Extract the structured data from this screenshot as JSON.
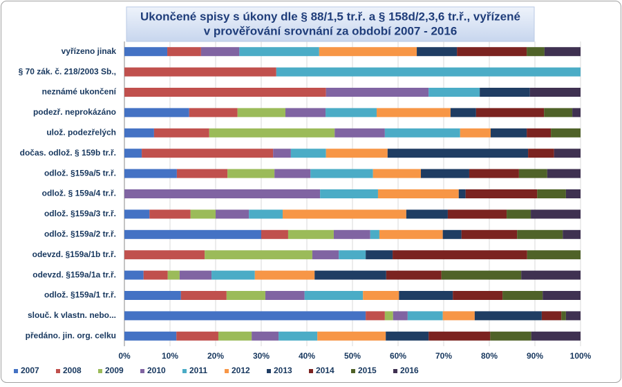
{
  "chart_data": {
    "type": "bar",
    "orientation": "horizontal",
    "stacked": true,
    "title": [
      "Ukončené spisy s úkony dle § 88/1,5 tr.ř. a § 158d/2,3,6 tr.ř., vyřízené",
      "v prověřování srovnání za období 2007  - 2016"
    ],
    "categories": [
      "vyřízeno jinak",
      "§ 70 zák. č. 218/2003 Sb.,",
      "neznámé ukončení",
      "podezř. neprokázáno",
      "ulož. podezřelých",
      "dočas. odlož. § 159b tr.ř.",
      "odlož. §159a/5 tr.ř.",
      "odlož. § 159a/4 tr.ř.",
      "odlož. §159a/3 tr.ř.",
      "odlož. §159a/2 tr.ř.",
      "odevzd. §159a/1b tr.ř.",
      "odevzd. §159a/1a tr.ř.",
      "odlož. §159a/1 tr.ř.",
      "slouč. k vlastn. nebo...",
      "předáno. jin. org. celku"
    ],
    "series": [
      {
        "name": "2007",
        "color": "#4472c4",
        "values": [
          9.4,
          0,
          0,
          14.2,
          6.5,
          3.8,
          11.5,
          0,
          5.5,
          30.0,
          0,
          4.2,
          12.4,
          52.9,
          11.4
        ]
      },
      {
        "name": "2008",
        "color": "#c0504d",
        "values": [
          7.4,
          33.3,
          44.2,
          10.6,
          12.1,
          28.8,
          11.1,
          0,
          9.0,
          5.9,
          17.6,
          5.3,
          10.0,
          4.2,
          9.2
        ]
      },
      {
        "name": "2009",
        "color": "#9bbb59",
        "values": [
          0,
          0,
          0,
          10.5,
          27.5,
          0,
          10.3,
          0,
          5.5,
          10.0,
          23.6,
          2.6,
          8.5,
          1.8,
          7.3
        ]
      },
      {
        "name": "2010",
        "color": "#8064a2",
        "values": [
          8.4,
          0,
          22.5,
          8.8,
          11.0,
          3.9,
          7.9,
          42.9,
          7.3,
          8.0,
          5.8,
          7.0,
          8.6,
          3.2,
          5.9
        ]
      },
      {
        "name": "2011",
        "color": "#4bacc6",
        "values": [
          17.5,
          66.7,
          11.2,
          11.2,
          16.5,
          7.7,
          13.7,
          12.7,
          7.4,
          2.0,
          5.9,
          9.5,
          12.8,
          7.7,
          8.5
        ]
      },
      {
        "name": "2012",
        "color": "#f79646",
        "values": [
          21.4,
          0,
          0,
          16.2,
          6.7,
          13.5,
          10.5,
          17.7,
          27.1,
          13.9,
          0,
          13.1,
          7.9,
          7.0,
          15.0
        ]
      },
      {
        "name": "2013",
        "color": "#1f3d63",
        "values": [
          8.8,
          0,
          11.0,
          5.6,
          7.9,
          30.8,
          10.6,
          1.5,
          9.1,
          4.1,
          5.9,
          15.7,
          11.8,
          14.7,
          9.4
        ]
      },
      {
        "name": "2014",
        "color": "#7b2320",
        "values": [
          15.3,
          0,
          0,
          14.9,
          5.3,
          5.7,
          10.9,
          15.7,
          12.9,
          12.2,
          29.5,
          12.1,
          10.9,
          4.3,
          13.5
        ]
      },
      {
        "name": "2015",
        "color": "#4f6228",
        "values": [
          3.9,
          0,
          0,
          6.2,
          6.5,
          0,
          6.2,
          6.3,
          5.3,
          10.0,
          11.7,
          17.5,
          8.8,
          1.0,
          9.0
        ]
      },
      {
        "name": "2016",
        "color": "#3f3151",
        "values": [
          7.9,
          0,
          11.1,
          1.8,
          0,
          5.8,
          7.3,
          3.2,
          10.9,
          3.9,
          0,
          13.0,
          8.3,
          3.2,
          10.8
        ]
      }
    ],
    "xlim": [
      0,
      100
    ],
    "xticks": [
      {
        "value": 0,
        "label": "0%"
      },
      {
        "value": 10,
        "label": "10%"
      },
      {
        "value": 20,
        "label": "20%"
      },
      {
        "value": 30,
        "label": "30%"
      },
      {
        "value": 40,
        "label": "40%"
      },
      {
        "value": 50,
        "label": "50%"
      },
      {
        "value": 60,
        "label": "60%"
      },
      {
        "value": 70,
        "label": "70%"
      },
      {
        "value": 80,
        "label": "80%"
      },
      {
        "value": 90,
        "label": "90%"
      },
      {
        "value": 100,
        "label": "100%"
      }
    ],
    "grid": true,
    "legend": "bottom"
  }
}
